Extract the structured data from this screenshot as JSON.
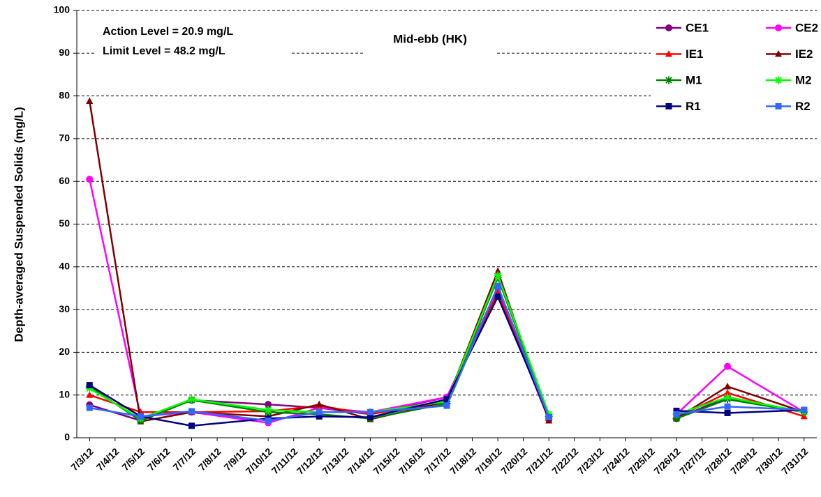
{
  "chart_data": {
    "type": "line",
    "title": "Mid-ebb (HK)",
    "annotations": [
      "Action Level = 20.9 mg/L",
      "Limit Level = 48.2 mg/L"
    ],
    "y_label": "Depth-averaged Suspended Solids (mg/L)",
    "categories": [
      "7/3/12",
      "7/4/12",
      "7/5/12",
      "7/6/12",
      "7/7/12",
      "7/8/12",
      "7/9/12",
      "7/10/12",
      "7/11/12",
      "7/12/12",
      "7/13/12",
      "7/14/12",
      "7/15/12",
      "7/16/12",
      "7/17/12",
      "7/18/12",
      "7/19/12",
      "7/20/12",
      "7/21/12",
      "7/22/12",
      "7/23/12",
      "7/24/12",
      "7/25/12",
      "7/26/12",
      "7/27/12",
      "7/28/12",
      "7/29/12",
      "7/30/12",
      "7/31/12"
    ],
    "x": [
      "7/3/12",
      "7/5/12",
      "7/7/12",
      "7/10/12",
      "7/12/12",
      "7/14/12",
      "7/17/12",
      "7/19/12",
      "7/21/12",
      "7/24/12",
      "7/26/12",
      "7/28/12",
      "7/31/12"
    ],
    "ylim": [
      0,
      100
    ],
    "yticks": [
      0,
      10,
      20,
      30,
      40,
      50,
      60,
      70,
      80,
      90,
      100
    ],
    "grid": true,
    "legend": "top-right",
    "series": [
      {
        "name": "CE1",
        "color": "#800080",
        "marker": "circle",
        "values": [
          7.7,
          4.0,
          8.8,
          7.8,
          7.0,
          5.5,
          9.5,
          34,
          4.2,
          null,
          4.5,
          9.5,
          6.0
        ]
      },
      {
        "name": "CE2",
        "color": "#ff00ff",
        "marker": "circle",
        "values": [
          60.5,
          5.0,
          6.0,
          3.5,
          7.0,
          6.0,
          9.5,
          35,
          4.5,
          null,
          5.5,
          16.7,
          6.0
        ]
      },
      {
        "name": "IE1",
        "color": "#ff0000",
        "marker": "triangle",
        "values": [
          10,
          6.0,
          6.0,
          6.2,
          7.5,
          5.5,
          8.5,
          34,
          4.5,
          null,
          4.8,
          10.5,
          5.0
        ]
      },
      {
        "name": "IE2",
        "color": "#800000",
        "marker": "triangle",
        "values": [
          78.8,
          3.8,
          6.0,
          5.0,
          7.8,
          4.3,
          8.5,
          39,
          4.0,
          null,
          4.5,
          12.0,
          6.0
        ]
      },
      {
        "name": "M1",
        "color": "#008000",
        "marker": "star",
        "values": [
          12,
          4.0,
          8.8,
          6.0,
          5.5,
          4.5,
          8.0,
          37.5,
          5.0,
          null,
          4.5,
          9.0,
          6.0
        ]
      },
      {
        "name": "M2",
        "color": "#00ff00",
        "marker": "star",
        "values": [
          11.5,
          4.5,
          9.0,
          6.5,
          6.0,
          6.0,
          8.5,
          38,
          5.5,
          null,
          5.5,
          9.5,
          6.0
        ]
      },
      {
        "name": "R1",
        "color": "#000080",
        "marker": "square",
        "values": [
          12.3,
          5.0,
          2.8,
          4.5,
          5.0,
          4.8,
          9.0,
          33,
          4.8,
          null,
          6.3,
          5.8,
          6.5
        ]
      },
      {
        "name": "R2",
        "color": "#3366ff",
        "marker": "square",
        "values": [
          7.0,
          5.0,
          6.2,
          4.0,
          6.0,
          6.0,
          7.5,
          35.5,
          4.8,
          null,
          5.5,
          7.3,
          6.5
        ]
      }
    ]
  }
}
